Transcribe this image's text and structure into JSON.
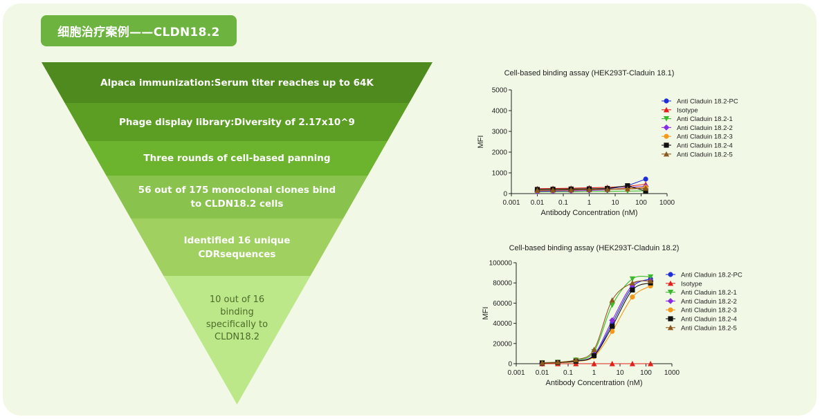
{
  "header": {
    "title": "细胞治疗案例——CLDN18.2"
  },
  "colors": {
    "panel_bg": "#f2f8e6",
    "title_bg": "#6cb33f",
    "band_colors": [
      "#4e8a1d",
      "#5c9d23",
      "#6cb32e",
      "#8ac24e",
      "#9fd060",
      "#bde88a"
    ]
  },
  "funnel": {
    "stages": [
      {
        "label": "Alpaca immunization:Serum titer reaches up to 64K"
      },
      {
        "label": "Phage display library:Diversity of 2.17x10^9"
      },
      {
        "label": "Three rounds of cell-based panning"
      },
      {
        "label": "56 out of 175 monoclonal clones bind\nto CLDN18.2 cells"
      },
      {
        "label": "Identified 16 unique\nCDRsequences"
      },
      {
        "label": "10 out of 16\nbinding\nspecifically to\nCLDN18.2"
      }
    ]
  },
  "chart_data": [
    {
      "type": "scatter",
      "title": "Cell-based binding assay (HEK293T-Claduin 18.1)",
      "xlabel": "Antibody Concentration (nM)",
      "ylabel": "MFI",
      "xscale": "log",
      "xlim": [
        0.001,
        1000
      ],
      "ylim": [
        0,
        5000
      ],
      "xticks": [
        "0.001",
        "0.01",
        "0.1",
        "1",
        "10",
        "100",
        "1000"
      ],
      "yticks": [
        "0",
        "1000",
        "2000",
        "3000",
        "4000",
        "5000"
      ],
      "legend": "right",
      "x": [
        0.01,
        0.04,
        0.2,
        1,
        5,
        30,
        150
      ],
      "series": [
        {
          "name": "Anti Claduin 18.2-PC",
          "color": "#1f2fd6",
          "marker": "circle",
          "values": [
            120,
            140,
            160,
            200,
            220,
            380,
            700
          ]
        },
        {
          "name": "Isotype",
          "color": "#e0201b",
          "marker": "triangle-up",
          "values": [
            240,
            250,
            260,
            280,
            300,
            350,
            450
          ]
        },
        {
          "name": "Anti Claduin 18.2-1",
          "color": "#3cb82d",
          "marker": "triangle-down",
          "values": [
            80,
            90,
            90,
            100,
            110,
            120,
            130
          ]
        },
        {
          "name": "Anti Claduin 18.2-2",
          "color": "#8a2be2",
          "marker": "diamond",
          "values": [
            110,
            120,
            130,
            150,
            180,
            300,
            350
          ]
        },
        {
          "name": "Anti Claduin 18.2-3",
          "color": "#f39a1d",
          "marker": "circle",
          "values": [
            150,
            160,
            170,
            190,
            210,
            250,
            300
          ]
        },
        {
          "name": "Anti Claduin 18.2-4",
          "color": "#111111",
          "marker": "square",
          "values": [
            200,
            210,
            220,
            230,
            250,
            380,
            120
          ]
        },
        {
          "name": "Anti Claduin 18.2-5",
          "color": "#8b5a1c",
          "marker": "triangle-up",
          "values": [
            160,
            170,
            180,
            190,
            200,
            220,
            260
          ]
        }
      ]
    },
    {
      "type": "line",
      "title": "Cell-based binding assay (HEK293T-Claduin 18.2)",
      "xlabel": "Antibody Concentration (nM)",
      "ylabel": "MFI",
      "xscale": "log",
      "xlim": [
        0.001,
        1000
      ],
      "ylim": [
        0,
        100000
      ],
      "xticks": [
        "0.001",
        "0.01",
        "0.1",
        "1",
        "10",
        "100",
        "1000"
      ],
      "yticks": [
        "0",
        "20000",
        "40000",
        "60000",
        "80000",
        "100000"
      ],
      "legend": "right",
      "x": [
        0.01,
        0.04,
        0.2,
        1,
        5,
        30,
        150
      ],
      "series": [
        {
          "name": "Anti Claduin 18.2-PC",
          "color": "#1f2fd6",
          "marker": "circle",
          "values": [
            800,
            1200,
            2800,
            8000,
            40000,
            76000,
            84000
          ]
        },
        {
          "name": "Isotype",
          "color": "#e0201b",
          "marker": "triangle-up",
          "values": [
            0,
            0,
            0,
            0,
            0,
            0,
            0
          ]
        },
        {
          "name": "Anti Claduin 18.2-1",
          "color": "#3cb82d",
          "marker": "triangle-down",
          "values": [
            900,
            1400,
            3500,
            12000,
            58000,
            84000,
            86000
          ]
        },
        {
          "name": "Anti Claduin 18.2-2",
          "color": "#8a2be2",
          "marker": "diamond",
          "values": [
            700,
            1100,
            2600,
            9000,
            43000,
            78000,
            82000
          ]
        },
        {
          "name": "Anti Claduin 18.2-3",
          "color": "#f39a1d",
          "marker": "circle",
          "values": [
            600,
            900,
            2200,
            7000,
            32000,
            66000,
            77000
          ]
        },
        {
          "name": "Anti Claduin 18.2-4",
          "color": "#111111",
          "marker": "square",
          "values": [
            700,
            1100,
            2500,
            8000,
            37000,
            73000,
            80000
          ]
        },
        {
          "name": "Anti Claduin 18.2-5",
          "color": "#8b5a1c",
          "marker": "triangle-up",
          "values": [
            1000,
            1500,
            3800,
            14000,
            63000,
            80000,
            82000
          ]
        }
      ]
    }
  ]
}
